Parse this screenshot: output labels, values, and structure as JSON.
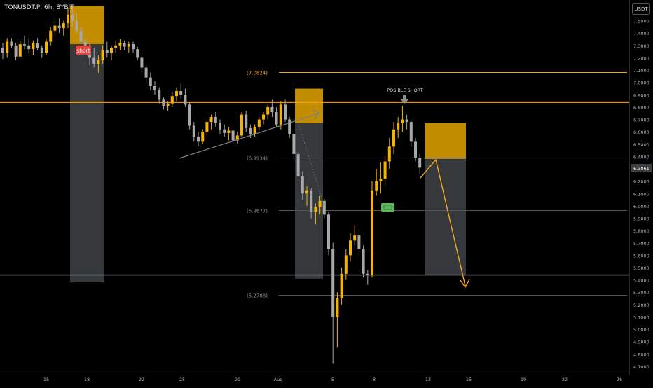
{
  "header": {
    "symbol": "TONUSDT.P, 6h, BYBIT",
    "currency": "USDT"
  },
  "annotations": {
    "short_tag": "short",
    "posible_short": "POSIBLE SHORT",
    "current_price": "6.3061"
  },
  "colors": {
    "background": "#000000",
    "bull": "#f5b400",
    "bear": "#a8a8a8",
    "accent": "#f5a623",
    "target_box": "#d39a00",
    "stop_box": "#3e4346",
    "target_marker": "#5cb85c"
  },
  "chart_data": {
    "type": "candlestick",
    "title": "TONUSDT.P, 6h, BYBIT",
    "x_ticks": [
      "15",
      "18",
      "22",
      "25",
      "29",
      "Aug",
      "5",
      "8",
      "12",
      "15",
      "19",
      "22",
      "26"
    ],
    "y_ticks": [
      "7.5000",
      "7.4000",
      "7.3000",
      "7.2000",
      "7.1000",
      "7.0000",
      "6.9000",
      "6.8000",
      "6.7000",
      "6.6000",
      "6.5000",
      "6.4000",
      "6.3000",
      "6.2000",
      "6.1000",
      "6.0000",
      "5.9000",
      "5.8000",
      "5.7000",
      "5.6000",
      "5.5000",
      "5.4000",
      "5.3000",
      "5.2000",
      "5.1000",
      "5.0000",
      "4.9000",
      "4.8000",
      "4.7000"
    ],
    "ylim": [
      4.66,
      7.6
    ],
    "level_lines": [
      {
        "label": "(7.0824)",
        "value": 7.0824
      },
      {
        "label": "(6.3934)",
        "value": 6.3934
      },
      {
        "label": "(5.9677)",
        "value": 5.9677
      },
      {
        "label": "(5.2788)",
        "value": 5.2788
      }
    ],
    "resistance": 6.84,
    "support": 5.44,
    "last_price": 6.3061,
    "candles": [
      [
        7.28,
        7.32,
        7.19,
        7.24
      ],
      [
        7.24,
        7.36,
        7.2,
        7.33
      ],
      [
        7.33,
        7.36,
        7.28,
        7.3
      ],
      [
        7.3,
        7.32,
        7.18,
        7.21
      ],
      [
        7.21,
        7.34,
        7.2,
        7.31
      ],
      [
        7.31,
        7.38,
        7.27,
        7.3
      ],
      [
        7.3,
        7.36,
        7.24,
        7.27
      ],
      [
        7.27,
        7.34,
        7.22,
        7.32
      ],
      [
        7.32,
        7.36,
        7.26,
        7.28
      ],
      [
        7.28,
        7.3,
        7.2,
        7.24
      ],
      [
        7.24,
        7.36,
        7.22,
        7.33
      ],
      [
        7.33,
        7.45,
        7.3,
        7.42
      ],
      [
        7.42,
        7.5,
        7.38,
        7.46
      ],
      [
        7.46,
        7.52,
        7.4,
        7.44
      ],
      [
        7.44,
        7.5,
        7.38,
        7.48
      ],
      [
        7.48,
        7.6,
        7.44,
        7.55
      ],
      [
        7.55,
        7.62,
        7.45,
        7.5
      ],
      [
        7.5,
        7.56,
        7.4,
        7.42
      ],
      [
        7.42,
        7.45,
        7.3,
        7.33
      ],
      [
        7.33,
        7.36,
        7.22,
        7.3
      ],
      [
        7.3,
        7.32,
        7.14,
        7.2
      ],
      [
        7.2,
        7.28,
        7.12,
        7.15
      ],
      [
        7.15,
        7.22,
        7.08,
        7.18
      ],
      [
        7.18,
        7.3,
        7.15,
        7.26
      ],
      [
        7.26,
        7.33,
        7.2,
        7.24
      ],
      [
        7.24,
        7.3,
        7.18,
        7.28
      ],
      [
        7.28,
        7.34,
        7.24,
        7.3
      ],
      [
        7.3,
        7.35,
        7.26,
        7.32
      ],
      [
        7.32,
        7.34,
        7.26,
        7.29
      ],
      [
        7.29,
        7.33,
        7.24,
        7.31
      ],
      [
        7.31,
        7.33,
        7.24,
        7.27
      ],
      [
        7.27,
        7.29,
        7.18,
        7.2
      ],
      [
        7.2,
        7.22,
        7.08,
        7.12
      ],
      [
        7.12,
        7.14,
        7.0,
        7.04
      ],
      [
        7.04,
        7.08,
        6.94,
        6.97
      ],
      [
        6.97,
        7.01,
        6.9,
        6.94
      ],
      [
        6.94,
        6.96,
        6.83,
        6.86
      ],
      [
        6.86,
        6.88,
        6.78,
        6.81
      ],
      [
        6.81,
        6.85,
        6.77,
        6.83
      ],
      [
        6.83,
        6.92,
        6.8,
        6.89
      ],
      [
        6.89,
        6.96,
        6.85,
        6.93
      ],
      [
        6.93,
        6.99,
        6.87,
        6.9
      ],
      [
        6.9,
        6.95,
        6.8,
        6.82
      ],
      [
        6.82,
        6.84,
        6.62,
        6.65
      ],
      [
        6.65,
        6.68,
        6.52,
        6.56
      ],
      [
        6.56,
        6.6,
        6.48,
        6.52
      ],
      [
        6.52,
        6.62,
        6.5,
        6.6
      ],
      [
        6.6,
        6.7,
        6.57,
        6.68
      ],
      [
        6.68,
        6.74,
        6.62,
        6.72
      ],
      [
        6.72,
        6.76,
        6.64,
        6.67
      ],
      [
        6.67,
        6.7,
        6.58,
        6.62
      ],
      [
        6.62,
        6.66,
        6.56,
        6.59
      ],
      [
        6.59,
        6.64,
        6.53,
        6.61
      ],
      [
        6.61,
        6.63,
        6.5,
        6.53
      ],
      [
        6.53,
        6.6,
        6.5,
        6.57
      ],
      [
        6.57,
        6.76,
        6.56,
        6.74
      ],
      [
        6.74,
        6.77,
        6.6,
        6.63
      ],
      [
        6.63,
        6.66,
        6.55,
        6.58
      ],
      [
        6.58,
        6.66,
        6.56,
        6.64
      ],
      [
        6.64,
        6.72,
        6.62,
        6.7
      ],
      [
        6.7,
        6.76,
        6.66,
        6.74
      ],
      [
        6.74,
        6.82,
        6.7,
        6.8
      ],
      [
        6.8,
        6.86,
        6.72,
        6.76
      ],
      [
        6.76,
        6.8,
        6.64,
        6.66
      ],
      [
        6.66,
        6.85,
        6.62,
        6.82
      ],
      [
        6.82,
        6.86,
        6.68,
        6.7
      ],
      [
        6.7,
        6.72,
        6.55,
        6.58
      ],
      [
        6.58,
        6.6,
        6.38,
        6.42
      ],
      [
        6.42,
        6.44,
        6.2,
        6.24
      ],
      [
        6.24,
        6.28,
        6.05,
        6.1
      ],
      [
        6.1,
        6.16,
        6.0,
        6.12
      ],
      [
        6.12,
        6.14,
        5.9,
        5.95
      ],
      [
        5.95,
        6.02,
        5.85,
        5.99
      ],
      [
        5.99,
        6.08,
        5.93,
        6.04
      ],
      [
        6.04,
        6.06,
        5.9,
        5.93
      ],
      [
        5.93,
        5.95,
        5.6,
        5.65
      ],
      [
        5.65,
        5.7,
        4.72,
        5.1
      ],
      [
        5.1,
        5.3,
        4.85,
        5.25
      ],
      [
        5.25,
        5.5,
        5.2,
        5.45
      ],
      [
        5.45,
        5.65,
        5.4,
        5.6
      ],
      [
        5.6,
        5.78,
        5.55,
        5.72
      ],
      [
        5.72,
        5.84,
        5.68,
        5.76
      ],
      [
        5.76,
        5.8,
        5.6,
        5.65
      ],
      [
        5.65,
        5.68,
        5.42,
        5.45
      ],
      [
        5.45,
        5.48,
        5.36,
        5.44
      ],
      [
        5.44,
        6.2,
        5.42,
        6.12
      ],
      [
        6.12,
        6.3,
        6.08,
        6.2
      ],
      [
        6.2,
        6.35,
        6.1,
        6.22
      ],
      [
        6.22,
        6.4,
        6.16,
        6.36
      ],
      [
        6.36,
        6.55,
        6.3,
        6.48
      ],
      [
        6.48,
        6.68,
        6.42,
        6.62
      ],
      [
        6.62,
        6.72,
        6.55,
        6.67
      ],
      [
        6.67,
        6.81,
        6.6,
        6.7
      ],
      [
        6.7,
        6.74,
        6.62,
        6.68
      ],
      [
        6.68,
        6.7,
        6.48,
        6.52
      ],
      [
        6.52,
        6.55,
        6.36,
        6.39
      ],
      [
        6.39,
        6.42,
        6.26,
        6.31
      ]
    ],
    "positions": [
      {
        "type": "short",
        "entry": 7.31,
        "stop": 7.62,
        "target": 5.38
      },
      {
        "type": "short",
        "entry": 6.67,
        "stop": 6.95,
        "target": 5.41
      },
      {
        "type": "short",
        "entry": 6.38,
        "stop": 6.67,
        "target": 5.44
      }
    ]
  }
}
